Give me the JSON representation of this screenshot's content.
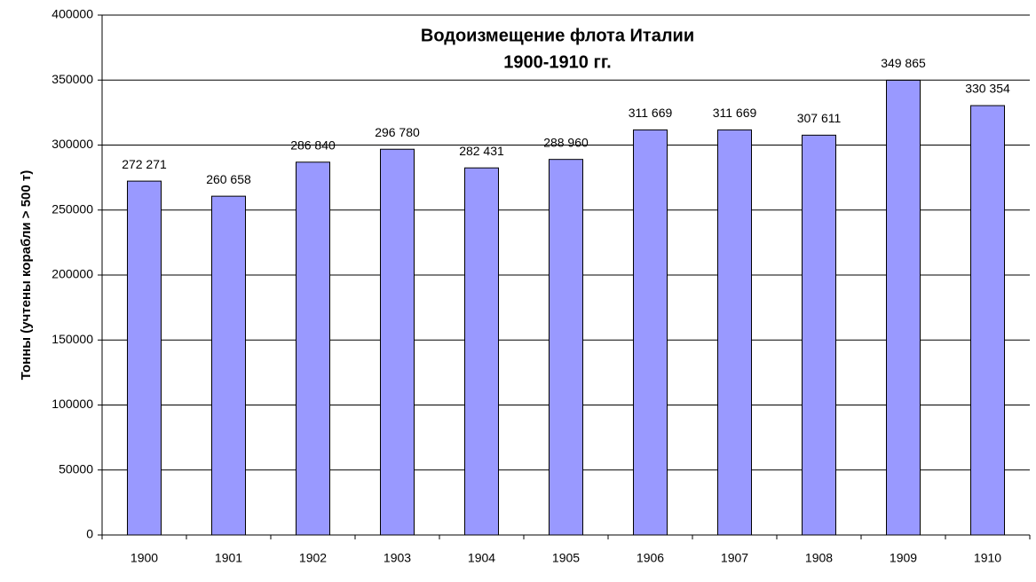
{
  "chart_data": {
    "type": "bar",
    "title": [
      "Водоизмещение флота Италии",
      "1900-1910 гг."
    ],
    "y_label": "Тонны (учтены корабли > 500 т)",
    "categories": [
      "1900",
      "1901",
      "1902",
      "1903",
      "1904",
      "1905",
      "1906",
      "1907",
      "1908",
      "1909",
      "1910"
    ],
    "values": [
      272271,
      260658,
      286840,
      296780,
      282431,
      288960,
      311669,
      311669,
      307611,
      349865,
      330354
    ],
    "value_labels": [
      "272 271",
      "260 658",
      "286 840",
      "296 780",
      "282 431",
      "288 960",
      "311 669",
      "311 669",
      "307 611",
      "349 865",
      "330 354"
    ],
    "color": "#9999ff",
    "ylim": [
      0,
      400000
    ],
    "yticks": [
      0,
      50000,
      100000,
      150000,
      200000,
      250000,
      300000,
      350000,
      400000
    ],
    "grid": true
  }
}
